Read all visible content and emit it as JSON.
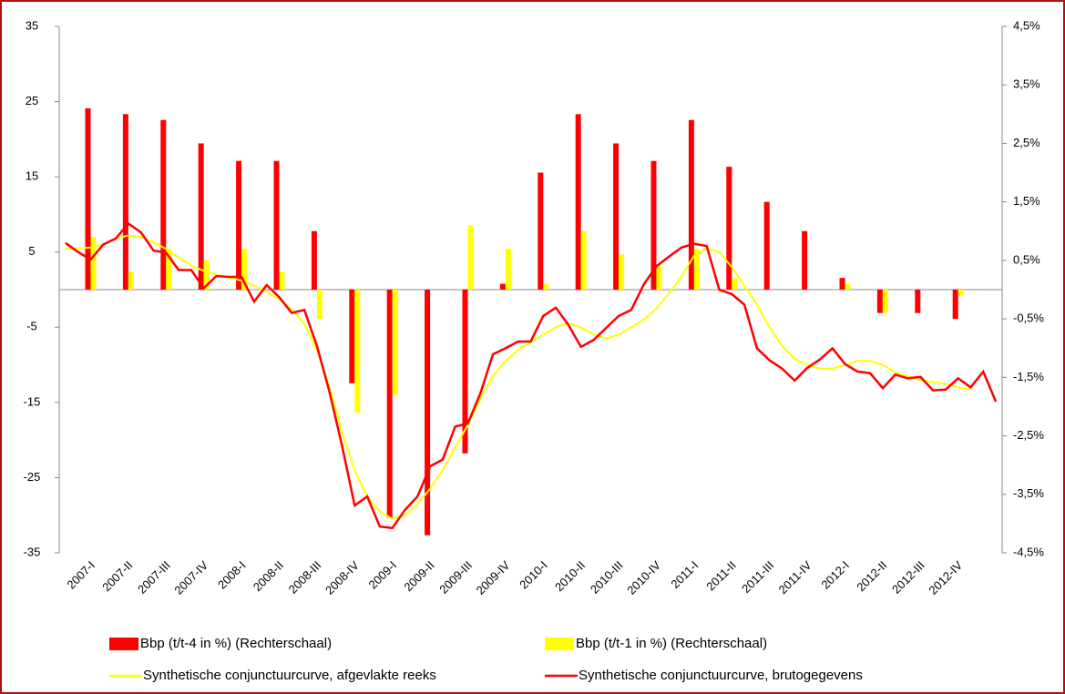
{
  "chart_data": {
    "type": "bar",
    "categories": [
      null,
      null,
      "2007-I",
      null,
      null,
      "2007-II",
      null,
      null,
      "2007-III",
      null,
      null,
      "2007-IV",
      null,
      null,
      "2008-I",
      null,
      null,
      "2008-II",
      null,
      null,
      "2008-III",
      null,
      null,
      "2008-IV",
      null,
      null,
      "2009-I",
      null,
      null,
      "2009-II",
      null,
      null,
      "2009-III",
      null,
      null,
      "2009-IV",
      null,
      null,
      "2010-I",
      null,
      null,
      "2010-II",
      null,
      null,
      "2010-III",
      null,
      null,
      "2010-IV",
      null,
      null,
      "2011-I",
      null,
      null,
      "2011-II",
      null,
      null,
      "2011-III",
      null,
      null,
      "2011-IV",
      null,
      null,
      "2012-I",
      null,
      null,
      "2012-II",
      null,
      null,
      "2012-III",
      null,
      null,
      "2012-IV",
      null,
      null,
      null
    ],
    "series": [
      {
        "name": "Bbp (t/t-4 in %) (Rechterschaal)",
        "type": "bar",
        "axis": "y2",
        "color": "#ff0000",
        "values": [
          null,
          null,
          3.1,
          null,
          null,
          3.0,
          null,
          null,
          2.9,
          null,
          null,
          2.5,
          null,
          null,
          2.2,
          null,
          null,
          2.2,
          null,
          null,
          1.0,
          null,
          null,
          -1.6,
          null,
          null,
          -3.9,
          null,
          null,
          -4.2,
          null,
          null,
          -2.8,
          null,
          null,
          0.1,
          null,
          null,
          2.0,
          null,
          null,
          3.0,
          null,
          null,
          2.5,
          null,
          null,
          2.2,
          null,
          null,
          2.9,
          null,
          null,
          2.1,
          null,
          null,
          1.5,
          null,
          null,
          1.0,
          null,
          null,
          0.2,
          null,
          null,
          -0.4,
          null,
          null,
          -0.4,
          null,
          null,
          -0.5,
          null,
          null,
          null
        ]
      },
      {
        "name": "Bbp (t/t-1 in %) (Rechterschaal)",
        "type": "bar",
        "axis": "y2",
        "color": "#ffff00",
        "values": [
          null,
          null,
          0.9,
          null,
          null,
          0.3,
          null,
          null,
          0.7,
          null,
          null,
          0.5,
          null,
          null,
          0.7,
          null,
          null,
          0.3,
          null,
          null,
          -0.5,
          null,
          null,
          -2.1,
          null,
          null,
          -1.8,
          null,
          null,
          0.0,
          null,
          null,
          1.1,
          null,
          null,
          0.7,
          null,
          null,
          0.1,
          null,
          null,
          1.0,
          null,
          null,
          0.6,
          null,
          null,
          0.4,
          null,
          null,
          0.7,
          null,
          null,
          0.2,
          null,
          null,
          0.0,
          null,
          null,
          0.0,
          null,
          null,
          0.1,
          null,
          null,
          -0.4,
          null,
          null,
          0.0,
          null,
          null,
          -0.1,
          null,
          null,
          null
        ]
      },
      {
        "name": "Synthetische conjunctuurcurve, afgevlakte reeks",
        "type": "line",
        "axis": "y",
        "color": "#ffff00",
        "values": [
          5.5,
          5.5,
          5.6,
          6.0,
          6.8,
          7.2,
          7.0,
          6.3,
          5.4,
          4.3,
          3.2,
          2.5,
          2.0,
          1.6,
          1.2,
          0.5,
          -0.3,
          -1.3,
          -2.6,
          -4.5,
          -8,
          -13,
          -19,
          -24,
          -27.5,
          -29.5,
          -30.5,
          -30,
          -28.5,
          -26.5,
          -24,
          -21,
          -18,
          -14.5,
          -11.5,
          -9.5,
          -8,
          -7,
          -6,
          -5,
          -4.5,
          -5,
          -6,
          -6.5,
          -6,
          -5,
          -4,
          -2.5,
          -0.5,
          1.8,
          4.5,
          5.5,
          5.0,
          3,
          0.5,
          -2,
          -5,
          -7.5,
          -9.2,
          -10,
          -10.5,
          -10.5,
          -10,
          -9.5,
          -9.5,
          -10,
          -11,
          -11.5,
          -12,
          -12.3,
          -12.5,
          -13,
          -13.3,
          null,
          null
        ]
      },
      {
        "name": "Synthetische conjunctuurcurve, brutogegevens",
        "type": "line",
        "axis": "y",
        "color": "#ff0000",
        "values": [
          6.2,
          5.0,
          4.0,
          6.0,
          6.8,
          8.8,
          7.6,
          5.2,
          4.9,
          2.6,
          2.6,
          0.2,
          1.8,
          1.7,
          1.7,
          -1.6,
          0.6,
          -1.0,
          -3.1,
          -2.7,
          -7.5,
          -13.6,
          -20.8,
          -28.7,
          -27.5,
          -31.5,
          -31.7,
          -29.3,
          -27.5,
          -23.5,
          -22.6,
          -18.2,
          -17.8,
          -13.8,
          -8.6,
          -7.8,
          -6.9,
          -6.9,
          -3.5,
          -2.4,
          -4.7,
          -7.6,
          -6.7,
          -5.1,
          -3.5,
          -2.7,
          0.7,
          3.1,
          4.4,
          5.6,
          6.1,
          5.8,
          0.0,
          -0.6,
          -2.0,
          -7.8,
          -9.4,
          -10.5,
          -12.1,
          -10.4,
          -9.3,
          -7.8,
          -9.9,
          -10.9,
          -11.1,
          -13.1,
          -11.3,
          -11.8,
          -11.6,
          -13.4,
          -13.3,
          -11.8,
          -13.0,
          -10.9,
          -14.9
        ]
      }
    ],
    "ylim": [
      -35,
      35
    ],
    "yticks": [
      -35,
      -25,
      -15,
      -5,
      5,
      15,
      25,
      35
    ],
    "y2lim": [
      -4.5,
      4.5
    ],
    "y2ticks": [
      {
        "value": -4.5,
        "label": "-4,5%"
      },
      {
        "value": -3.5,
        "label": "-3,5%"
      },
      {
        "value": -2.5,
        "label": "-2,5%"
      },
      {
        "value": -1.5,
        "label": "-1,5%"
      },
      {
        "value": -0.5,
        "label": "-0,5%"
      },
      {
        "value": 0.5,
        "label": "0,5%"
      },
      {
        "value": 1.5,
        "label": "1,5%"
      },
      {
        "value": 2.5,
        "label": "2,5%"
      },
      {
        "value": 3.5,
        "label": "3,5%"
      },
      {
        "value": 4.5,
        "label": "4,5%"
      }
    ],
    "legend": "bottom"
  }
}
